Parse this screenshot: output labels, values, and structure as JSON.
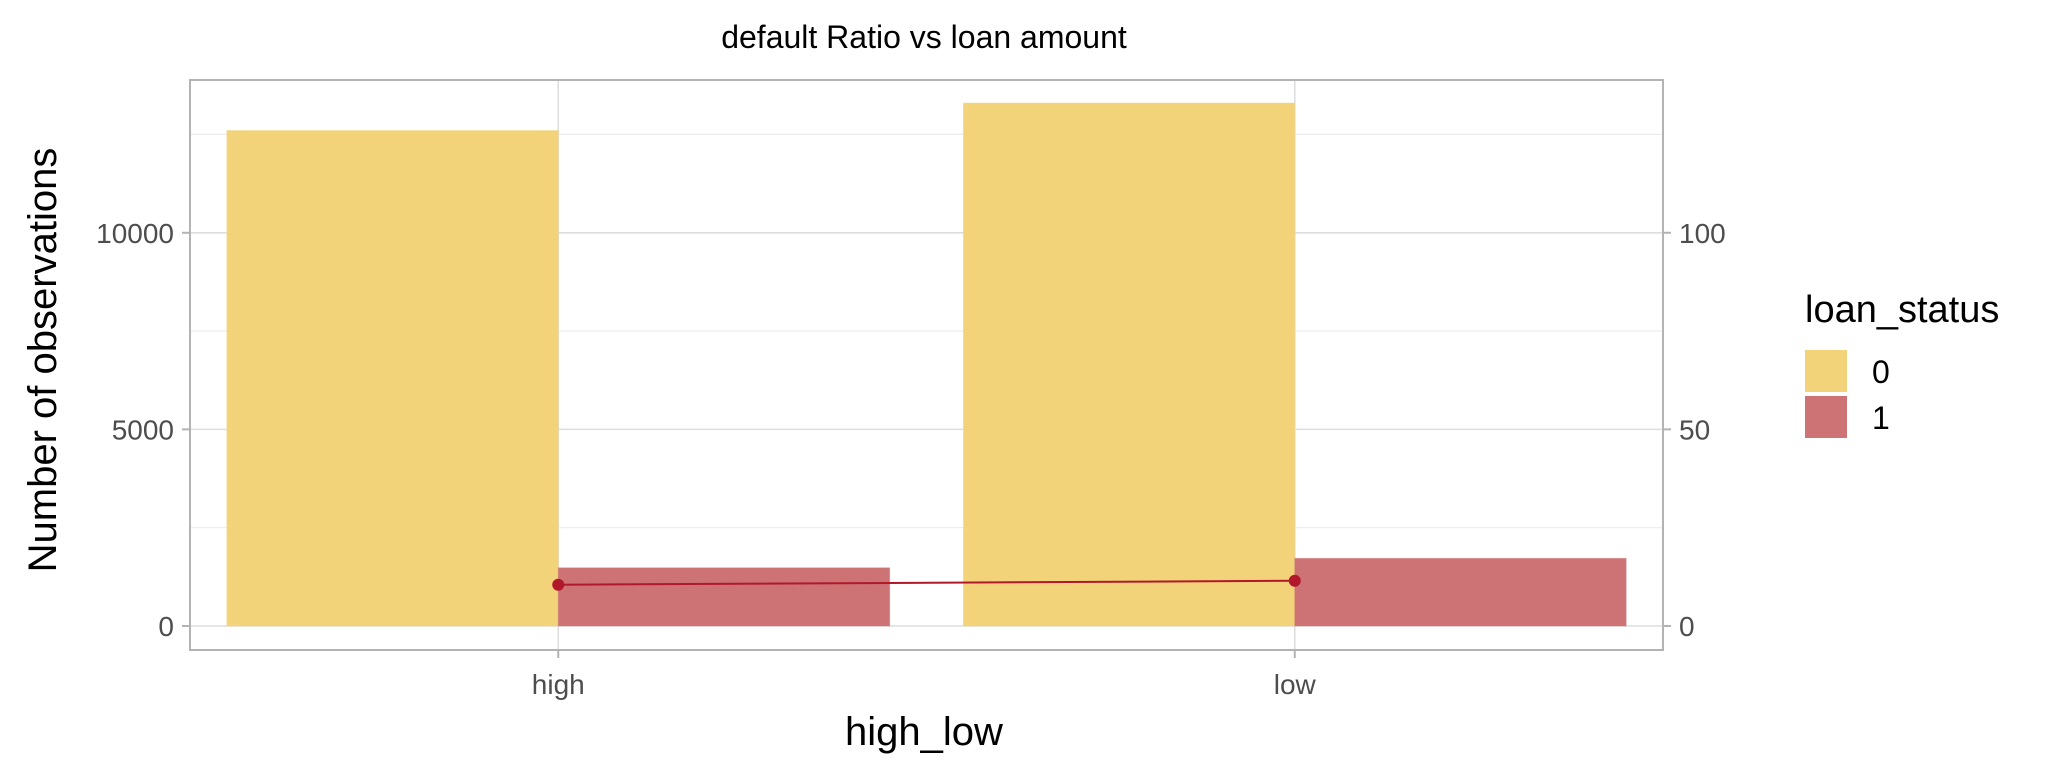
{
  "chart_data": {
    "type": "bar",
    "title": "default Ratio  vs loan amount",
    "xlabel": "high_low",
    "ylabel": "Number of observations",
    "categories": [
      "high",
      "low"
    ],
    "ylim": [
      0,
      13800
    ],
    "yticks": [
      0,
      5000,
      10000
    ],
    "y2ticks": [
      0,
      50,
      100
    ],
    "y2_scale_factor": 100,
    "grid": true,
    "legend_position": "right",
    "legend_title": "loan_status",
    "series": [
      {
        "name": "0",
        "color": "#f3d37a",
        "values": [
          12600,
          13300
        ]
      },
      {
        "name": "1",
        "color": "#cd7375",
        "values": [
          1480,
          1720
        ]
      }
    ],
    "line_series": {
      "color": "#b2182b",
      "values_secondary": [
        10.5,
        11.5
      ]
    }
  }
}
